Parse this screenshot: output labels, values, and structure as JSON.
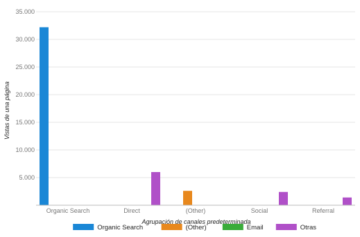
{
  "chart_data": {
    "type": "bar",
    "xlabel": "Agrupación de canales predeterminada",
    "ylabel": "Vistas de una página",
    "ylim": [
      0,
      35000
    ],
    "yticks": [
      "35.000",
      "30.000",
      "25.000",
      "20.000",
      "15.000",
      "10.000",
      "5.000"
    ],
    "ytick_values": [
      35000,
      30000,
      25000,
      20000,
      15000,
      10000,
      5000
    ],
    "categories": [
      "Organic Search",
      "Direct",
      "(Other)",
      "Social",
      "Referral"
    ],
    "series": [
      {
        "name": "Organic Search",
        "color": "#1a87d6",
        "values": [
          32200,
          0,
          0,
          0,
          0
        ]
      },
      {
        "name": "(Other)",
        "color": "#e8881d",
        "values": [
          0,
          0,
          2600,
          0,
          0
        ]
      },
      {
        "name": "Email",
        "color": "#3aac3a",
        "values": [
          0,
          0,
          0,
          0,
          0
        ]
      },
      {
        "name": "Otras",
        "color": "#b050c8",
        "values": [
          0,
          6000,
          0,
          2400,
          1400
        ]
      }
    ],
    "grid": true,
    "legend_position": "bottom"
  }
}
